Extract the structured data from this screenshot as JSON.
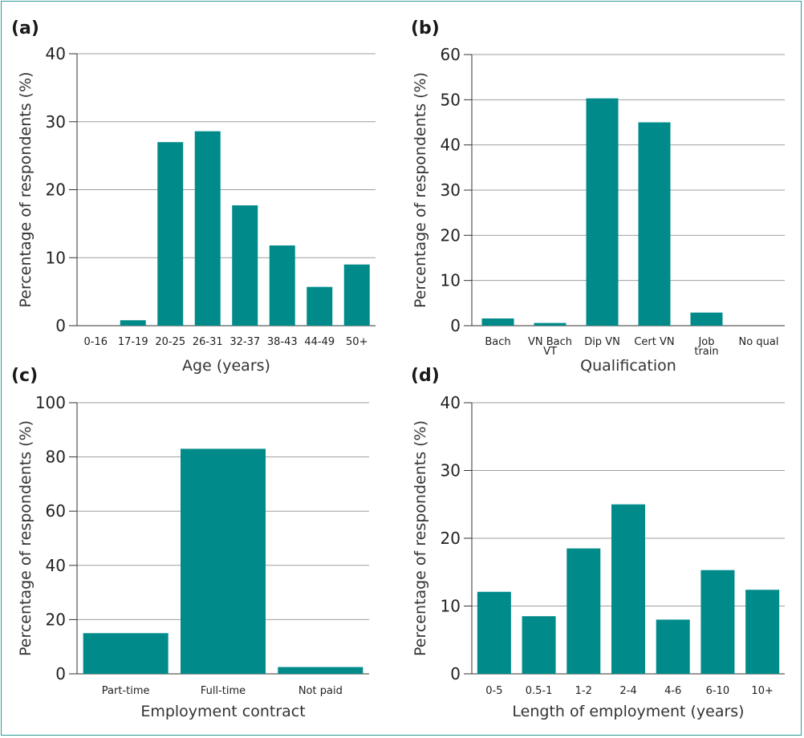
{
  "colors": {
    "bar": "#008b8a",
    "grid": "#9e9e9e",
    "axis": "#333333",
    "frame": "#2a9d96"
  },
  "chart_data": [
    {
      "type": "bar",
      "panel": "(a)",
      "title": "",
      "xlabel": "Age (years)",
      "ylabel": "Percentage of respondents (%)",
      "ylim": [
        0,
        40
      ],
      "yticks": [
        0,
        10,
        20,
        30,
        40
      ],
      "grid": true,
      "categories": [
        "0-16",
        "17-19",
        "20-25",
        "26-31",
        "32-37",
        "38-43",
        "44-49",
        "50+"
      ],
      "values": [
        0,
        0.8,
        27,
        28.6,
        17.7,
        11.8,
        5.7,
        9
      ]
    },
    {
      "type": "bar",
      "panel": "(b)",
      "title": "",
      "xlabel": "Qualification",
      "ylabel": "Percentage of respondents (%)",
      "ylim": [
        0,
        60
      ],
      "yticks": [
        0,
        10,
        20,
        30,
        40,
        50,
        60
      ],
      "grid": true,
      "categories": [
        "Bach",
        "VN Bach VT",
        "Dip VN",
        "Cert VN",
        "Job train",
        "No qual"
      ],
      "values": [
        1.6,
        0.6,
        50.3,
        45,
        2.9,
        0
      ]
    },
    {
      "type": "bar",
      "panel": "(c)",
      "title": "",
      "xlabel": "Employment contract",
      "ylabel": "Percentage of respondents (%)",
      "ylim": [
        0,
        100
      ],
      "yticks": [
        0,
        20,
        40,
        60,
        80,
        100
      ],
      "grid": true,
      "categories": [
        "Part-time",
        "Full-time",
        "Not paid"
      ],
      "values": [
        15,
        83,
        2.5
      ]
    },
    {
      "type": "bar",
      "panel": "(d)",
      "title": "",
      "xlabel": "Length of employment (years)",
      "ylabel": "Percentage of respondents (%)",
      "ylim": [
        0,
        40
      ],
      "yticks": [
        0,
        10,
        20,
        30,
        40
      ],
      "grid": true,
      "categories": [
        "0-5",
        "0.5-1",
        "1-2",
        "2-4",
        "4-6",
        "6-10",
        "10+"
      ],
      "values": [
        12.1,
        8.5,
        18.5,
        25,
        8,
        15.3,
        12.4
      ]
    }
  ]
}
